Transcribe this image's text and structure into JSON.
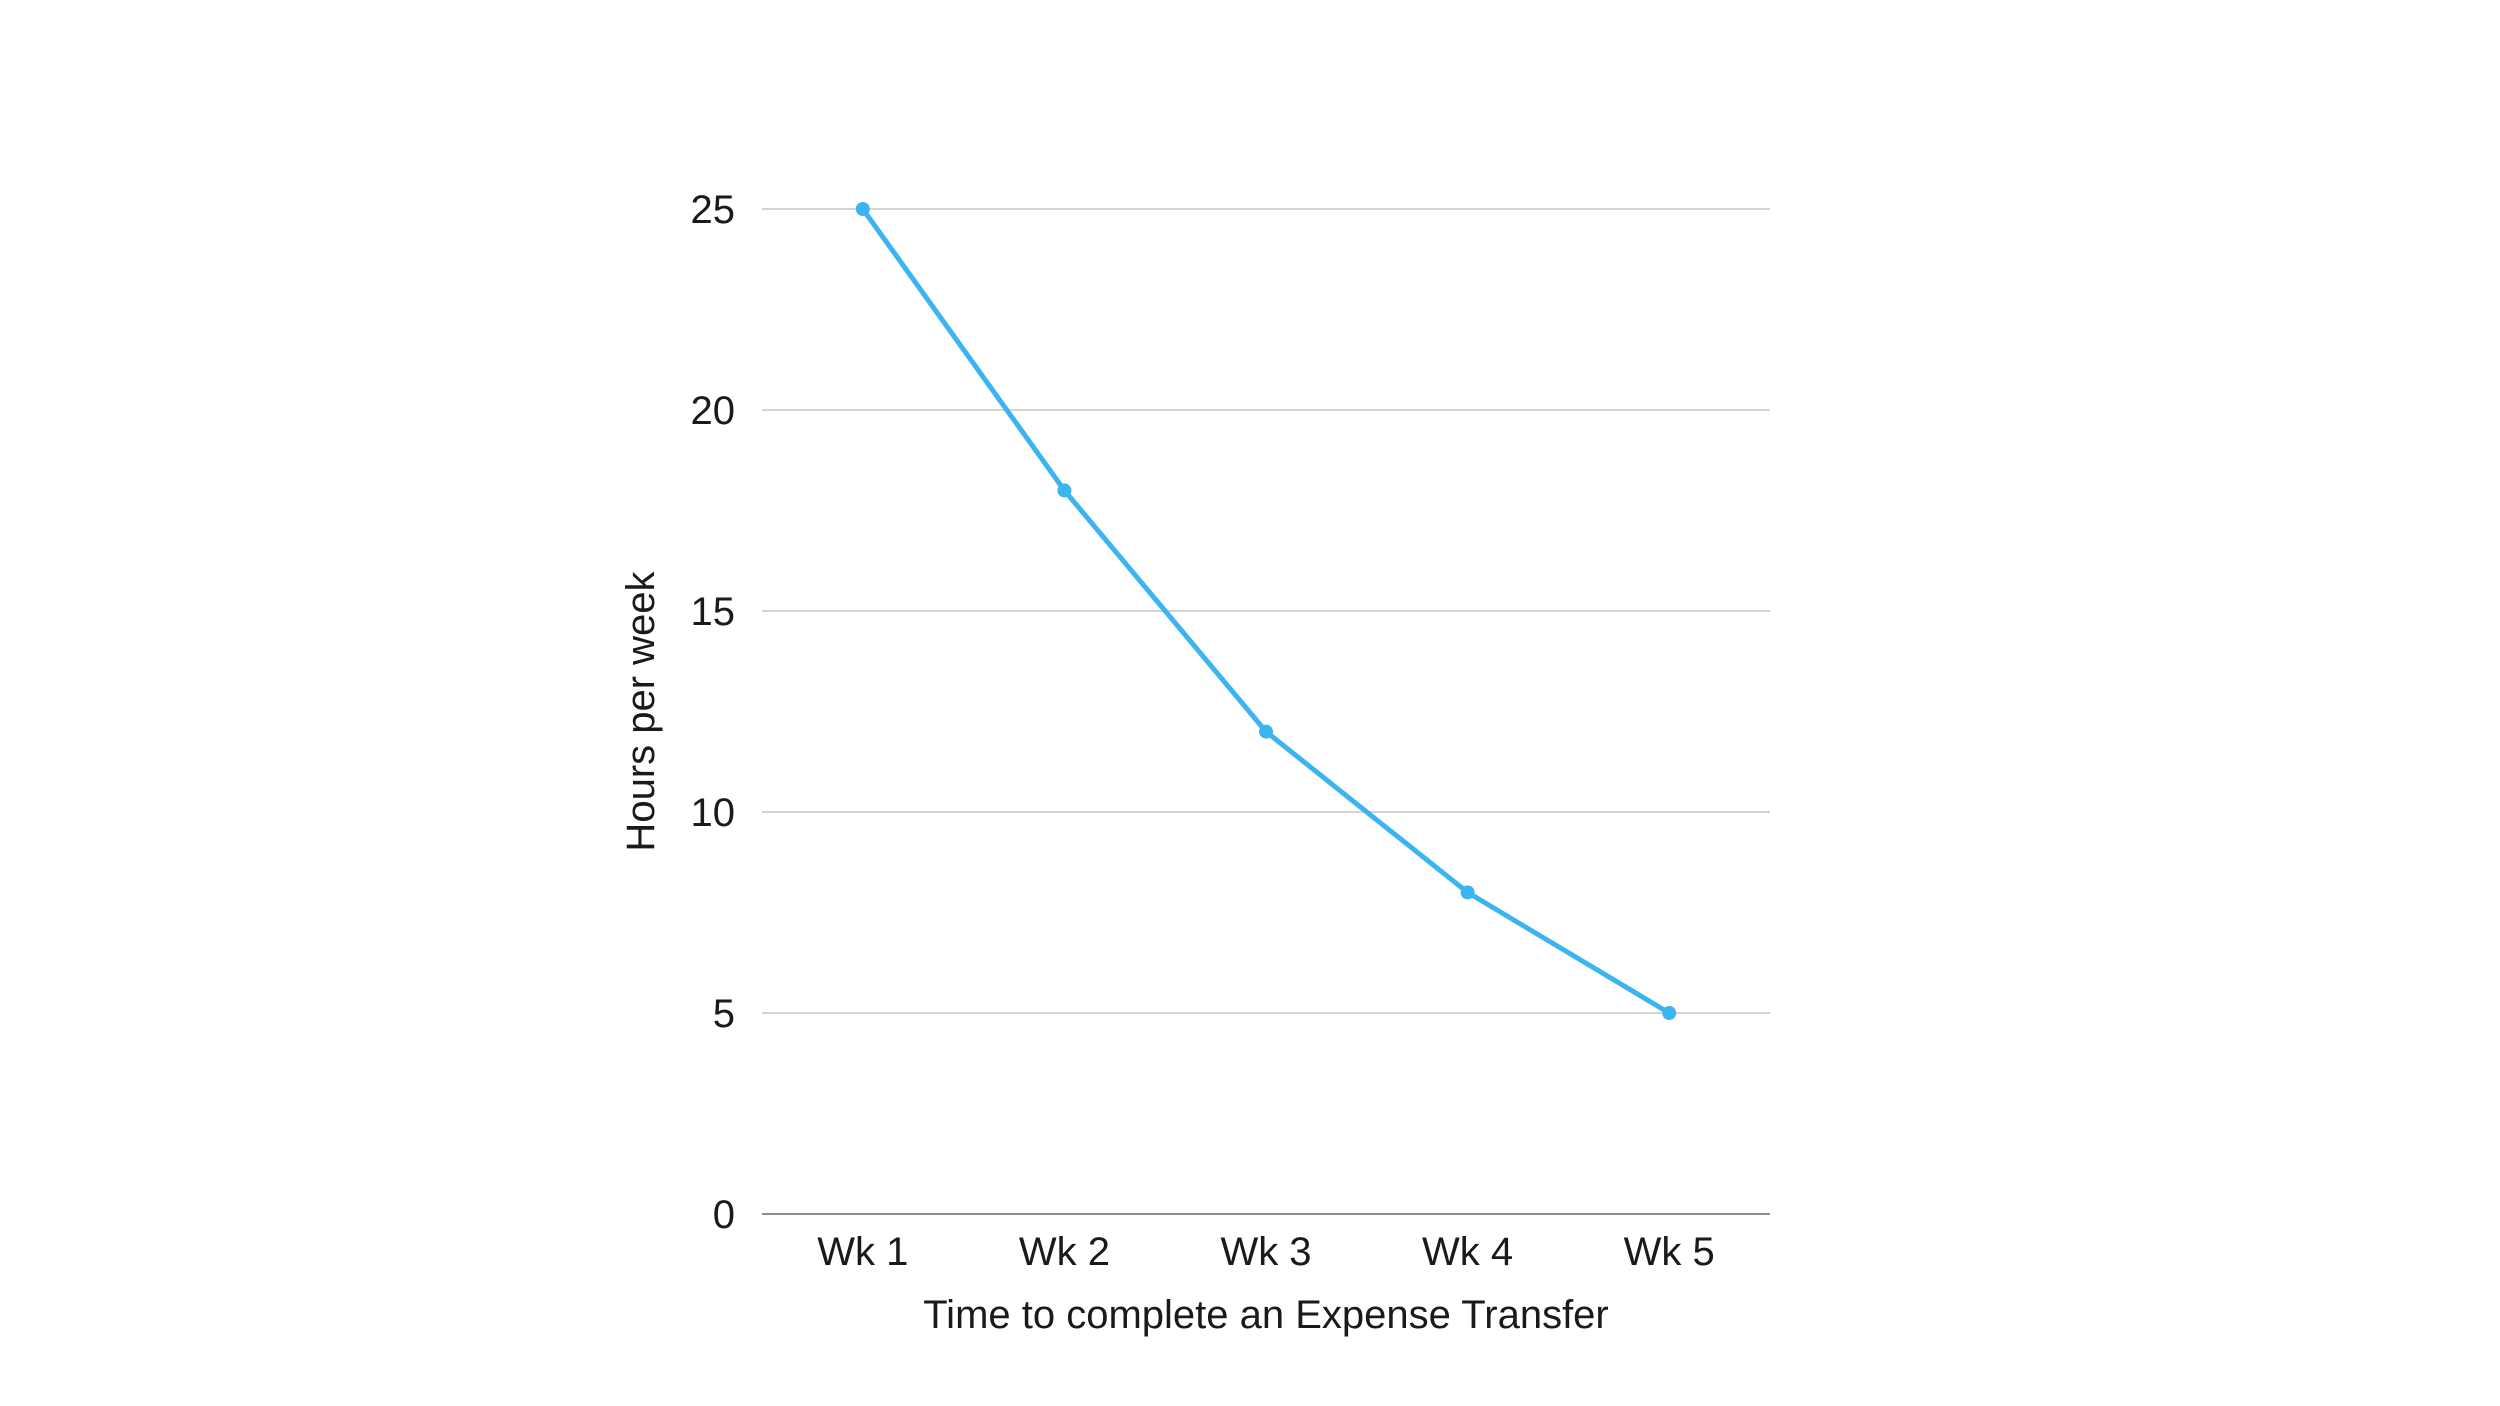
{
  "chart_data": {
    "type": "line",
    "categories": [
      "Wk 1",
      "Wk 2",
      "Wk 3",
      "Wk 4",
      "Wk 5"
    ],
    "series": [
      {
        "values": [
          25,
          18,
          12,
          8,
          5
        ]
      }
    ],
    "title": "",
    "xlabel": "Time to complete an Expense Transfer",
    "ylabel": "Hours per week",
    "ylim": [
      0,
      25
    ],
    "yticks": [
      0,
      5,
      10,
      15,
      20,
      25
    ],
    "grid": true,
    "legend": "none",
    "colors": {
      "series": "#3db4f2",
      "grid": "#d4d4d4",
      "baseline": "#8c8c8c",
      "text": "#1a1a1a"
    }
  }
}
